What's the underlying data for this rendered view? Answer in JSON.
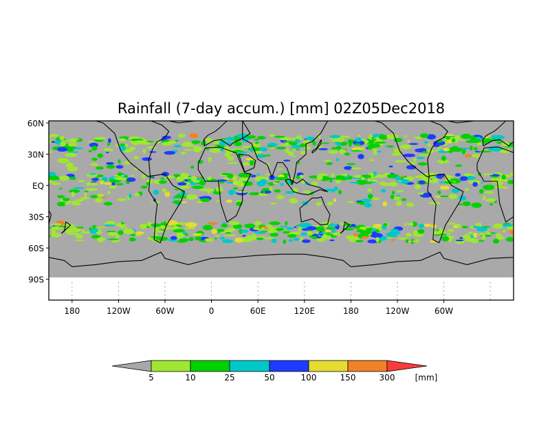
{
  "title": "Rainfall (7-day accum.) [mm] 02Z05Dec2018",
  "map": {
    "lat_labels": [
      "60N",
      "30N",
      "EQ",
      "30S",
      "60S",
      "90S"
    ],
    "lon_labels": [
      "180",
      "120W",
      "60W",
      "0",
      "60E",
      "120E",
      "180",
      "120W",
      "60W"
    ],
    "lon_range": [
      -210,
      390
    ],
    "lat_range": [
      -110,
      62
    ],
    "colors": {
      "land_no_rain": "#a9a9a9",
      "coastline": "#000000",
      "gridline": "#9a9a9a"
    }
  },
  "colorbar": {
    "levels": [
      "5",
      "10",
      "25",
      "50",
      "100",
      "150",
      "300"
    ],
    "unit": "[mm]",
    "bins": [
      {
        "color": "#a8a8a8"
      },
      {
        "color": "#a0e632"
      },
      {
        "color": "#00d200"
      },
      {
        "color": "#00c8c8"
      },
      {
        "color": "#1e3cff"
      },
      {
        "color": "#e6dc32"
      },
      {
        "color": "#f08228"
      },
      {
        "color": "#fa3c3c"
      }
    ]
  }
}
